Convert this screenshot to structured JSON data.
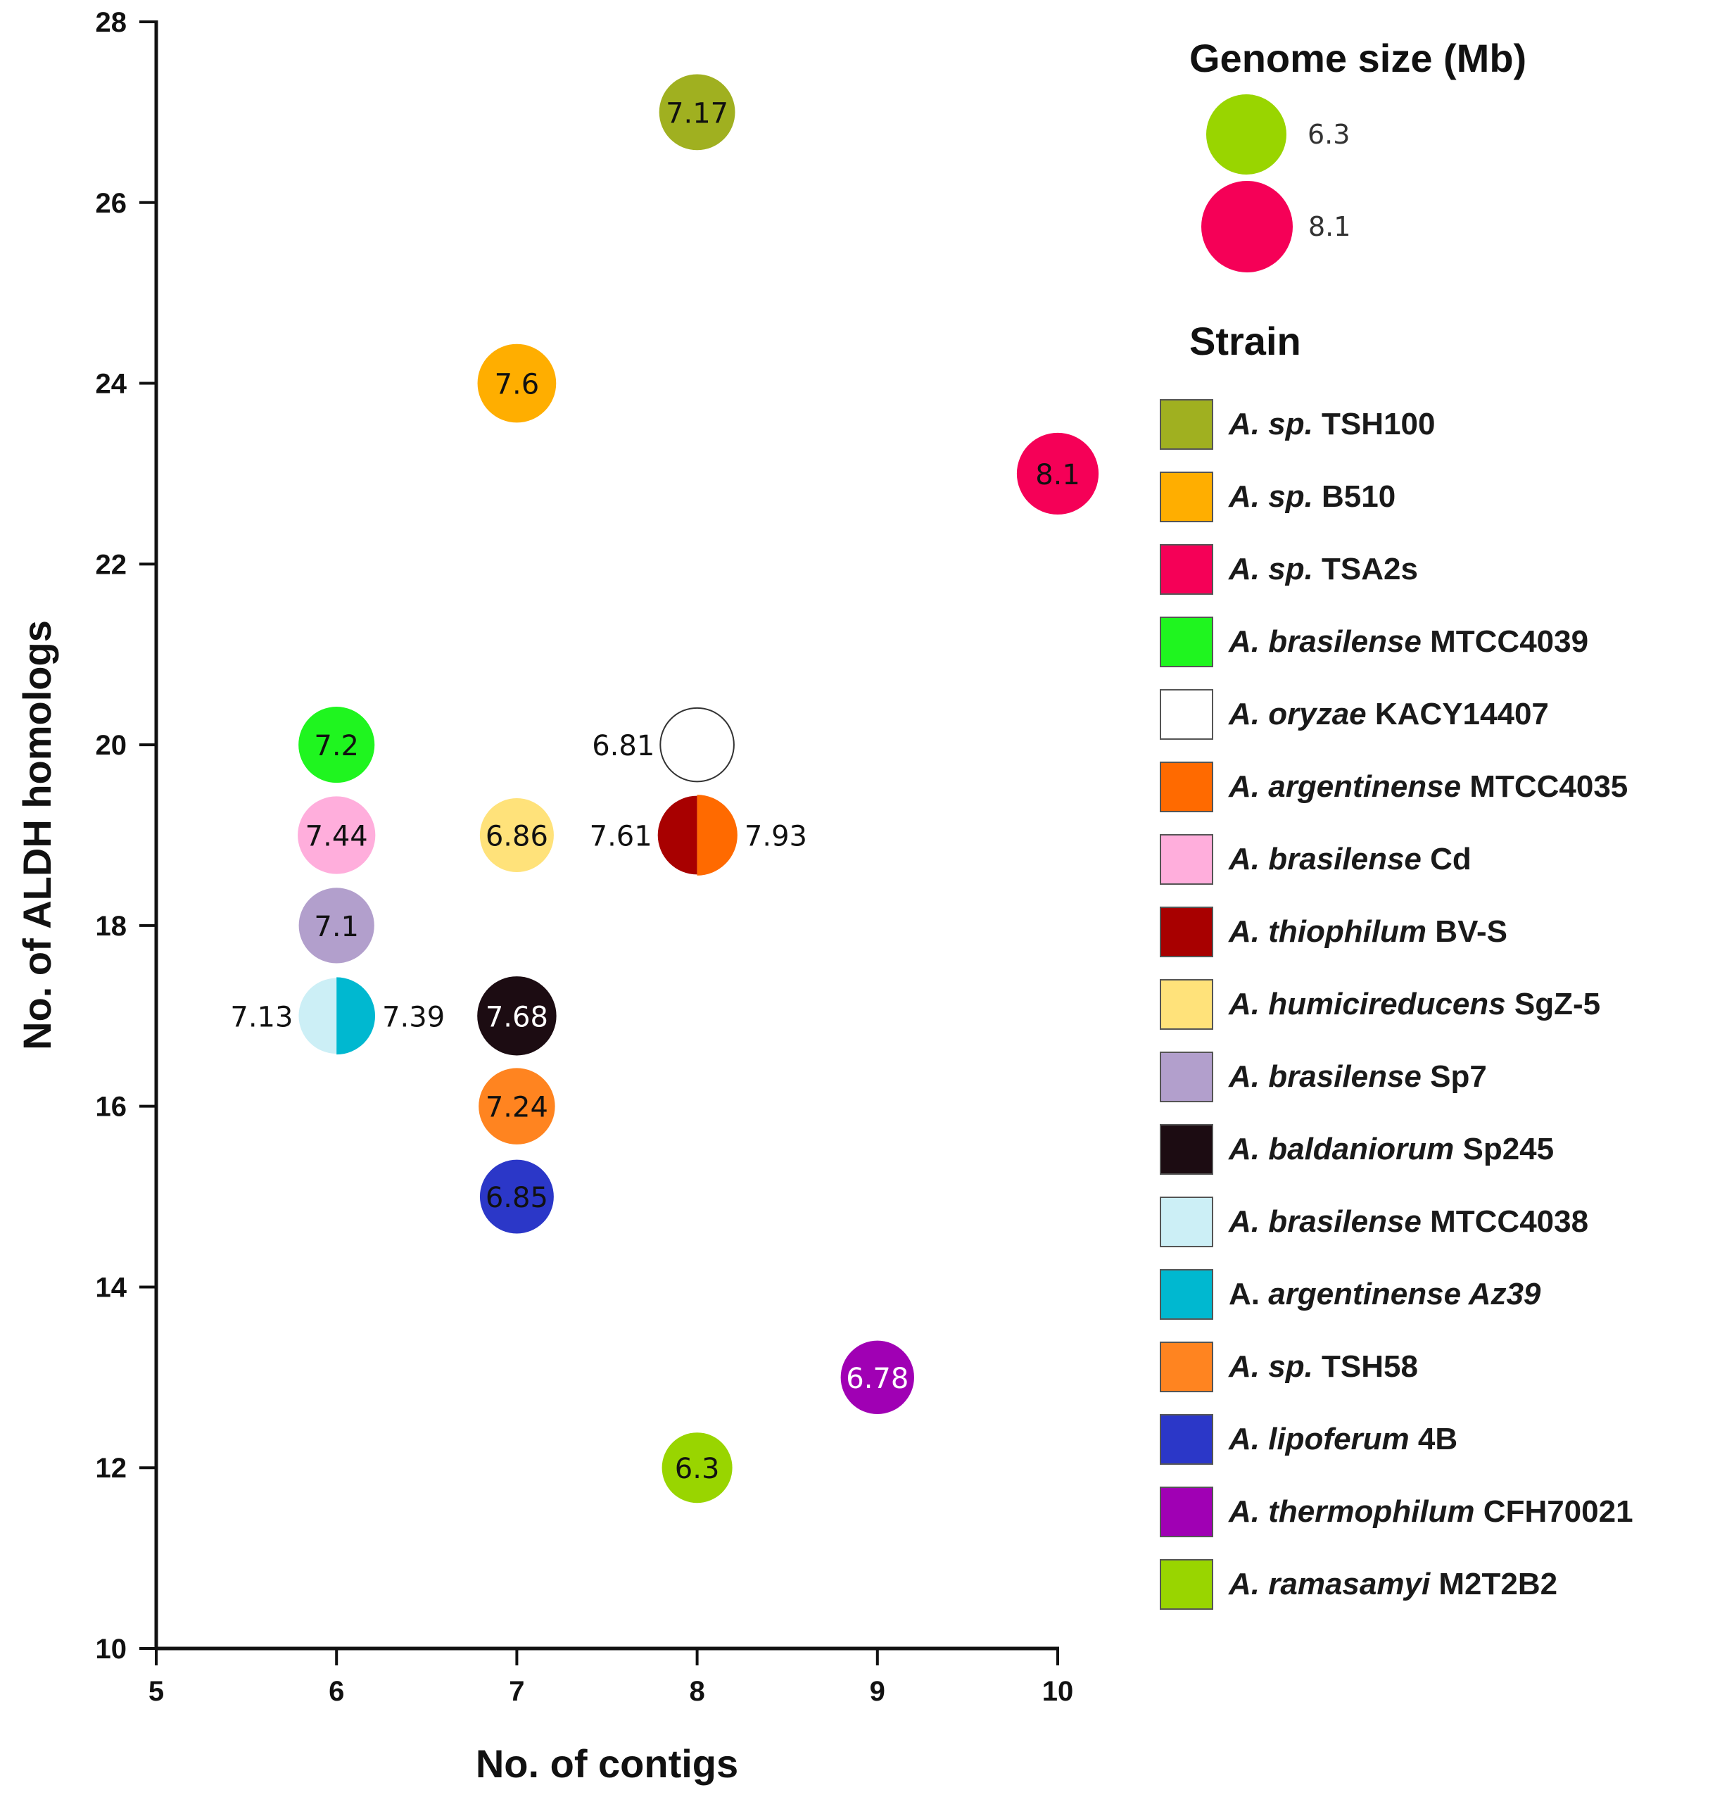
{
  "chart_data": {
    "type": "scatter",
    "subtype": "bubble",
    "xlabel": "No. of contigs",
    "ylabel": "No. of ALDH homologs",
    "xlim": [
      5,
      10
    ],
    "ylim": [
      10,
      28
    ],
    "x_ticks": [
      5,
      6,
      7,
      8,
      9,
      10
    ],
    "y_ticks": [
      10,
      12,
      14,
      16,
      18,
      20,
      22,
      24,
      26,
      28
    ],
    "grid": false,
    "size_legend": {
      "title": "Genome size (Mb)",
      "items": [
        {
          "label": "6.3",
          "value": 6.3,
          "color": "#99d500"
        },
        {
          "label": "8.1",
          "value": 8.1,
          "color": "#f50057"
        }
      ]
    },
    "strain_legend_title": "Strain",
    "points": [
      {
        "x": 8,
        "y": 27,
        "size": 7.17,
        "label": "7.17",
        "label_pos": "center",
        "label_color": "#111111",
        "strain": 0,
        "color": "#a0b020"
      },
      {
        "x": 7,
        "y": 24,
        "size": 7.6,
        "label": "7.6",
        "label_pos": "center",
        "label_color": "#111111",
        "strain": 1,
        "color": "#ffae00"
      },
      {
        "x": 10,
        "y": 23,
        "size": 8.1,
        "label": "8.1",
        "label_pos": "center",
        "label_color": "#111111",
        "strain": 2,
        "color": "#f50057"
      },
      {
        "x": 6,
        "y": 20,
        "size": 7.2,
        "label": "7.2",
        "label_pos": "center",
        "label_color": "#111111",
        "strain": 3,
        "color": "#1ff51f"
      },
      {
        "x": 8,
        "y": 20,
        "size": 6.81,
        "label": "6.81",
        "label_pos": "left",
        "label_color": "#111111",
        "strain": 4,
        "color": "#ffffff"
      },
      {
        "x": 8,
        "y": 19,
        "size": 7.61,
        "label": "7.61",
        "label_pos": "left",
        "label_color": "#111111",
        "strain": 7,
        "color": "#a80000",
        "half": "left"
      },
      {
        "x": 8,
        "y": 19,
        "size": 7.93,
        "label": "7.93",
        "label_pos": "right",
        "label_color": "#111111",
        "strain": 5,
        "color": "#ff6a00",
        "half": "right"
      },
      {
        "x": 6,
        "y": 19,
        "size": 7.44,
        "label": "7.44",
        "label_pos": "center",
        "label_color": "#111111",
        "strain": 6,
        "color": "#ffaedc"
      },
      {
        "x": 7,
        "y": 19,
        "size": 6.86,
        "label": "6.86",
        "label_pos": "center",
        "label_color": "#111111",
        "strain": 8,
        "color": "#ffe27a"
      },
      {
        "x": 6,
        "y": 18,
        "size": 7.1,
        "label": "7.1",
        "label_pos": "center",
        "label_color": "#111111",
        "strain": 9,
        "color": "#b29fcc"
      },
      {
        "x": 6,
        "y": 17,
        "size": 7.13,
        "label": "7.13",
        "label_pos": "left",
        "label_color": "#111111",
        "strain": 11,
        "color": "#cceff6",
        "half": "left"
      },
      {
        "x": 6,
        "y": 17,
        "size": 7.39,
        "label": "7.39",
        "label_pos": "right",
        "label_color": "#111111",
        "strain": 12,
        "color": "#00b8d0",
        "half": "right"
      },
      {
        "x": 7,
        "y": 17,
        "size": 7.68,
        "label": "7.68",
        "label_pos": "center",
        "label_color": "#ffffff",
        "strain": 10,
        "color": "#1c0c12"
      },
      {
        "x": 7,
        "y": 16,
        "size": 7.24,
        "label": "7.24",
        "label_pos": "center",
        "label_color": "#111111",
        "strain": 13,
        "color": "#ff8420"
      },
      {
        "x": 7,
        "y": 15,
        "size": 6.85,
        "label": "6.85",
        "label_pos": "center",
        "label_color": "#111111",
        "strain": 14,
        "color": "#2b37c8"
      },
      {
        "x": 9,
        "y": 13,
        "size": 6.78,
        "label": "6.78",
        "label_pos": "center",
        "label_color": "#ffffff",
        "strain": 15,
        "color": "#a000b4"
      },
      {
        "x": 8,
        "y": 12,
        "size": 6.3,
        "label": "6.3",
        "label_pos": "center",
        "label_color": "#111111",
        "strain": 16,
        "color": "#99d500"
      }
    ],
    "strains": [
      {
        "italic": "A. sp.",
        "plain": " TSH100",
        "color": "#a0b020"
      },
      {
        "italic": "A. sp.",
        "plain": " B510",
        "color": "#ffae00"
      },
      {
        "italic": "A. sp.",
        "plain": " TSA2s",
        "color": "#f50057"
      },
      {
        "italic": "A. brasilense",
        "plain": " MTCC4039",
        "color": "#1ff51f"
      },
      {
        "italic": "A. oryzae",
        "plain": " KACY14407",
        "color": "#ffffff"
      },
      {
        "italic": "A. argentinense",
        "plain": " MTCC4035",
        "color": "#ff6a00"
      },
      {
        "italic": "A. brasilense",
        "plain": " Cd",
        "color": "#ffaedc"
      },
      {
        "italic": "A. thiophilum",
        "plain": " BV-S",
        "color": "#a80000"
      },
      {
        "italic": "A. humicireducens",
        "plain": " SgZ-5",
        "color": "#ffe27a"
      },
      {
        "italic": "A. brasilense",
        "plain": " Sp7",
        "color": "#b29fcc"
      },
      {
        "italic": "A. baldaniorum",
        "plain": " Sp245",
        "color": "#1c0c12"
      },
      {
        "italic": "A. brasilense",
        "plain": " MTCC4038",
        "color": "#cceff6"
      },
      {
        "plain_first": "A. ",
        "italic": "argentinense Az39",
        "plain": "",
        "color": "#00b8d0"
      },
      {
        "italic": "A. sp.",
        "plain": " TSH58",
        "color": "#ff8420"
      },
      {
        "italic": "A. lipoferum",
        "plain": " 4B",
        "color": "#2b37c8"
      },
      {
        "italic": "A. thermophilum",
        "plain": " CFH70021",
        "color": "#a000b4"
      },
      {
        "italic": "A. ramasamyi",
        "plain": " M2T2B2",
        "color": "#99d500"
      }
    ]
  }
}
